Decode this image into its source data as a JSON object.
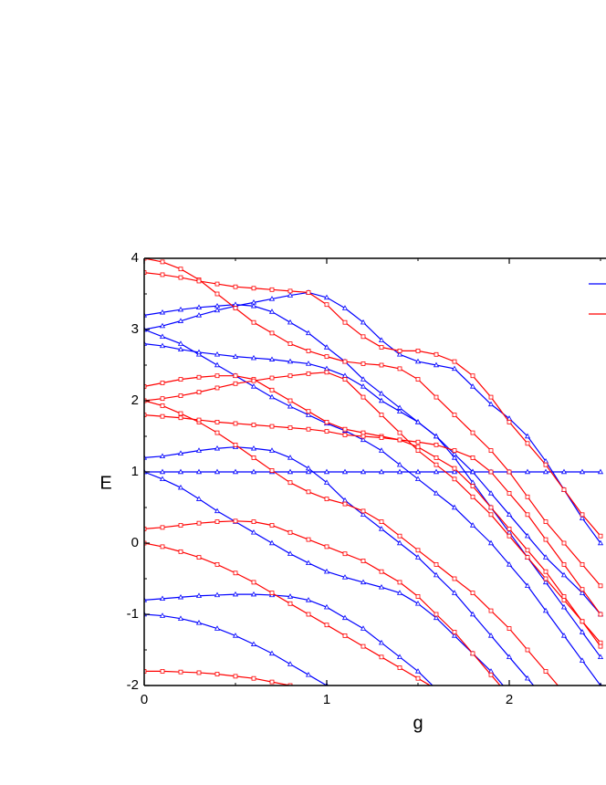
{
  "chart_data": {
    "type": "line",
    "x_label": "g",
    "y_label": "E",
    "xlim": [
      0,
      3
    ],
    "ylim": [
      -2,
      4
    ],
    "xticks": [
      0,
      1,
      2
    ],
    "yticks": [
      -2,
      -1,
      0,
      1,
      2,
      3,
      4
    ],
    "x": [
      0,
      0.1,
      0.2,
      0.3,
      0.4,
      0.5,
      0.6,
      0.7,
      0.8,
      0.9,
      1.0,
      1.1,
      1.2,
      1.3,
      1.4,
      1.5,
      1.6,
      1.7,
      1.8,
      1.9,
      2.0,
      2.1,
      2.2,
      2.3,
      2.4,
      2.5
    ],
    "series": [
      {
        "color": "#0000ff",
        "marker": "triangle",
        "values": [
          1,
          1,
          1,
          1,
          1,
          1,
          1,
          1,
          1,
          1,
          1,
          1,
          1,
          1,
          1,
          1,
          1,
          1,
          1,
          1,
          1,
          1,
          1,
          1,
          1,
          1
        ]
      },
      {
        "color": "#0000ff",
        "marker": "triangle",
        "values": [
          3.0,
          3.05,
          3.12,
          3.2,
          3.27,
          3.33,
          3.38,
          3.43,
          3.48,
          3.52,
          3.45,
          3.3,
          3.1,
          2.85,
          2.65,
          2.55,
          2.5,
          2.45,
          2.2,
          1.95,
          1.75,
          1.5,
          1.15,
          0.75,
          0.35,
          0.0
        ]
      },
      {
        "color": "#0000ff",
        "marker": "triangle",
        "values": [
          3.2,
          3.24,
          3.28,
          3.31,
          3.33,
          3.35,
          3.33,
          3.25,
          3.1,
          2.95,
          2.75,
          2.55,
          2.3,
          2.1,
          1.9,
          1.7,
          1.5,
          1.2,
          0.85,
          0.5,
          0.15,
          -0.2,
          -0.55,
          -0.9,
          -1.25,
          -1.6
        ]
      },
      {
        "color": "#0000ff",
        "marker": "triangle",
        "values": [
          3.0,
          2.9,
          2.8,
          2.65,
          2.5,
          2.35,
          2.2,
          2.05,
          1.92,
          1.8,
          1.68,
          1.58,
          1.45,
          1.3,
          1.1,
          0.9,
          0.7,
          0.5,
          0.25,
          0.0,
          -0.3,
          -0.6,
          -0.95,
          -1.3,
          -1.65,
          -2.0
        ]
      },
      {
        "color": "#0000ff",
        "marker": "triangle",
        "values": [
          2.8,
          2.77,
          2.72,
          2.68,
          2.65,
          2.62,
          2.6,
          2.58,
          2.55,
          2.52,
          2.45,
          2.35,
          2.2,
          2.0,
          1.85,
          1.7,
          1.5,
          1.25,
          1.0,
          0.7,
          0.4,
          0.1,
          -0.2,
          -0.45,
          -0.7,
          -1.0
        ]
      },
      {
        "color": "#0000ff",
        "marker": "triangle",
        "values": [
          1.2,
          1.22,
          1.26,
          1.3,
          1.33,
          1.35,
          1.33,
          1.3,
          1.2,
          1.05,
          0.85,
          0.6,
          0.4,
          0.2,
          0.0,
          -0.2,
          -0.45,
          -0.7,
          -1.0,
          -1.3,
          -1.6,
          -1.9,
          -2.2,
          null,
          null,
          null
        ]
      },
      {
        "color": "#0000ff",
        "marker": "triangle",
        "values": [
          1.0,
          0.9,
          0.78,
          0.62,
          0.45,
          0.3,
          0.15,
          0.0,
          -0.15,
          -0.28,
          -0.4,
          -0.48,
          -0.55,
          -0.62,
          -0.7,
          -0.85,
          -1.05,
          -1.3,
          -1.55,
          -1.8,
          -2.1,
          null,
          null,
          null,
          null,
          null
        ]
      },
      {
        "color": "#0000ff",
        "marker": "triangle",
        "values": [
          -0.8,
          -0.78,
          -0.76,
          -0.74,
          -0.73,
          -0.72,
          -0.72,
          -0.73,
          -0.75,
          -0.8,
          -0.9,
          -1.05,
          -1.2,
          -1.4,
          -1.6,
          -1.8,
          -2.05,
          null,
          null,
          null,
          null,
          null,
          null,
          null,
          null,
          null
        ]
      },
      {
        "color": "#0000ff",
        "marker": "triangle",
        "values": [
          -1.0,
          -1.02,
          -1.06,
          -1.12,
          -1.2,
          -1.3,
          -1.42,
          -1.55,
          -1.7,
          -1.85,
          -2.0,
          -2.15,
          null,
          null,
          null,
          null,
          null,
          null,
          null,
          null,
          null,
          null,
          null,
          null,
          null,
          null
        ]
      },
      {
        "color": "#ff0000",
        "marker": "square",
        "values": [
          4.0,
          3.95,
          3.85,
          3.7,
          3.5,
          3.3,
          3.1,
          2.95,
          2.8,
          2.7,
          2.62,
          2.55,
          2.52,
          2.5,
          2.45,
          2.3,
          2.05,
          1.8,
          1.55,
          1.3,
          1.0,
          0.65,
          0.3,
          0.0,
          -0.3,
          -0.6
        ]
      },
      {
        "color": "#ff0000",
        "marker": "square",
        "values": [
          3.8,
          3.77,
          3.73,
          3.68,
          3.64,
          3.6,
          3.58,
          3.56,
          3.54,
          3.52,
          3.35,
          3.1,
          2.9,
          2.75,
          2.7,
          2.7,
          2.65,
          2.55,
          2.35,
          2.05,
          1.7,
          1.4,
          1.1,
          0.75,
          0.4,
          0.1
        ]
      },
      {
        "color": "#ff0000",
        "marker": "square",
        "values": [
          2.2,
          2.25,
          2.3,
          2.33,
          2.35,
          2.35,
          2.3,
          2.15,
          2.0,
          1.85,
          1.7,
          1.6,
          1.55,
          1.5,
          1.45,
          1.42,
          1.38,
          1.3,
          1.2,
          1.0,
          0.7,
          0.4,
          0.05,
          -0.3,
          -0.65,
          -1.0
        ]
      },
      {
        "color": "#ff0000",
        "marker": "square",
        "values": [
          2.0,
          2.03,
          2.07,
          2.12,
          2.18,
          2.24,
          2.28,
          2.32,
          2.35,
          2.38,
          2.4,
          2.3,
          2.05,
          1.8,
          1.55,
          1.3,
          1.1,
          0.9,
          0.65,
          0.4,
          0.1,
          -0.2,
          -0.5,
          -0.8,
          -1.1,
          -1.4
        ]
      },
      {
        "color": "#ff0000",
        "marker": "square",
        "values": [
          2.0,
          1.93,
          1.82,
          1.7,
          1.55,
          1.38,
          1.2,
          1.02,
          0.85,
          0.72,
          0.62,
          0.55,
          0.45,
          0.3,
          0.1,
          -0.1,
          -0.3,
          -0.5,
          -0.7,
          -0.95,
          -1.2,
          -1.5,
          -1.8,
          -2.1,
          null,
          null
        ]
      },
      {
        "color": "#ff0000",
        "marker": "square",
        "values": [
          1.8,
          1.78,
          1.76,
          1.73,
          1.7,
          1.68,
          1.66,
          1.64,
          1.62,
          1.6,
          1.57,
          1.52,
          1.5,
          1.48,
          1.45,
          1.35,
          1.2,
          1.05,
          0.8,
          0.5,
          0.2,
          -0.1,
          -0.4,
          -0.75,
          -1.1,
          -1.45
        ]
      },
      {
        "color": "#ff0000",
        "marker": "square",
        "values": [
          0.2,
          0.22,
          0.25,
          0.28,
          0.3,
          0.31,
          0.3,
          0.25,
          0.15,
          0.05,
          -0.05,
          -0.15,
          -0.25,
          -0.4,
          -0.55,
          -0.75,
          -1.0,
          -1.25,
          -1.55,
          -1.85,
          -2.15,
          null,
          null,
          null,
          null,
          null
        ]
      },
      {
        "color": "#ff0000",
        "marker": "square",
        "values": [
          0.0,
          -0.05,
          -0.12,
          -0.2,
          -0.3,
          -0.42,
          -0.55,
          -0.7,
          -0.85,
          -1.0,
          -1.15,
          -1.3,
          -1.45,
          -1.6,
          -1.75,
          -1.9,
          -2.05,
          null,
          null,
          null,
          null,
          null,
          null,
          null,
          null,
          null
        ]
      },
      {
        "color": "#ff0000",
        "marker": "square",
        "values": [
          -1.8,
          -1.8,
          -1.81,
          -1.82,
          -1.84,
          -1.87,
          -1.9,
          -1.95,
          -2.0,
          -2.05,
          null,
          null,
          null,
          null,
          null,
          null,
          null,
          null,
          null,
          null,
          null,
          null,
          null,
          null,
          null,
          null
        ]
      }
    ]
  }
}
